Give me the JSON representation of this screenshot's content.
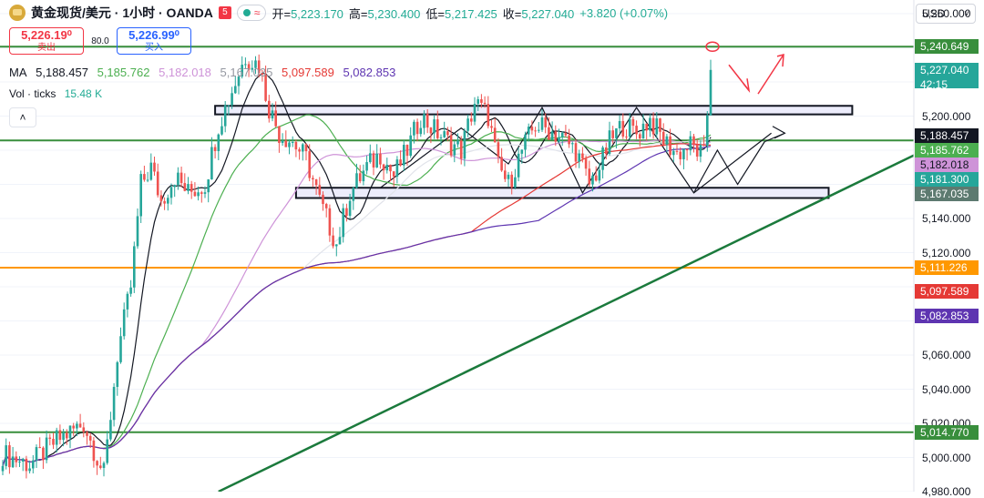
{
  "header": {
    "symbol_title": "黄金现货/美元 · 1小时 · OANDA",
    "flag": "5",
    "pill_wave": "≈",
    "open_label": "开=",
    "open": "5,223.170",
    "high_label": "高=",
    "high": "5,230.400",
    "low_label": "低=",
    "low": "5,217.425",
    "close_label": "收=",
    "close": "5,227.040",
    "change": "+3.820 (+0.07%)"
  },
  "trade": {
    "sell_price": "5,226.19⁰",
    "sell_label": "卖出",
    "spread": "80.0",
    "buy_price": "5,226.99⁰",
    "buy_label": "买入"
  },
  "ma": {
    "label": "MA",
    "values": [
      "5,188.457",
      "5,185.762",
      "5,182.018",
      "5,167.035",
      "5,097.589",
      "5,082.853"
    ],
    "colors": [
      "#131722",
      "#4caf50",
      "#ce93d8",
      "#9598a1",
      "#e53935",
      "#5e35b1"
    ]
  },
  "volume": {
    "label": "Vol · ticks",
    "value": "15.48 K"
  },
  "collapse_icon": "chevron-up-icon",
  "currency": {
    "label": "USD",
    "icon": "chevron-down-icon"
  },
  "price_axis": {
    "ticks": [
      "5,260.000",
      "5,200.000",
      "5,140.000",
      "5,120.000",
      "5,060.000",
      "5,040.000",
      "5,020.000",
      "5,000.000",
      "4,980.000"
    ],
    "tags": [
      {
        "label": "5,240.649",
        "color": "#388e3c",
        "price": 5240.649
      },
      {
        "label": "5,227.040",
        "sub": "42:15",
        "color": "#26a69a",
        "price": 5227.04
      },
      {
        "label": "5,188.457",
        "color": "#131722",
        "price": 5188.457
      },
      {
        "label": "5,185.762",
        "color": "#4caf50",
        "price": 5185.762
      },
      {
        "label": "5,182.018",
        "color": "#ce93d8",
        "price": 5182.018,
        "text_color": "#131722"
      },
      {
        "label": "5,181.300",
        "color": "#26a69a",
        "price": 5181.3
      },
      {
        "label": "5,167.035",
        "color": "#5d7a70",
        "price": 5167.035
      },
      {
        "label": "5,111.226",
        "color": "#ff9800",
        "price": 5111.226
      },
      {
        "label": "5,097.589",
        "color": "#e53935",
        "price": 5097.589
      },
      {
        "label": "5,082.853",
        "color": "#5e35b1",
        "price": 5082.853
      },
      {
        "label": "5,014.770",
        "color": "#388e3c",
        "price": 5014.77
      }
    ]
  },
  "chart_data": {
    "type": "candlestick",
    "title": "黄金现货/美元 · 1小时 · OANDA",
    "ylim": [
      4980,
      5268
    ],
    "up_color": "#26a69a",
    "down_color": "#ef5350",
    "horizontal_levels": [
      {
        "price": 5240.649,
        "color": "#388e3c"
      },
      {
        "price": 5185.762,
        "color": "#388e3c"
      },
      {
        "price": 5111.226,
        "color": "#ff9800"
      },
      {
        "price": 5014.77,
        "color": "#388e3c"
      }
    ],
    "zones": [
      {
        "top": 5206,
        "bottom": 5201,
        "start_index": 63,
        "end_index": 252
      },
      {
        "top": 5158,
        "bottom": 5152,
        "start_index": 87,
        "end_index": 245
      }
    ],
    "key_points": [
      [
        0,
        5002
      ],
      [
        8,
        4996
      ],
      [
        16,
        5010
      ],
      [
        24,
        5020
      ],
      [
        30,
        4990
      ],
      [
        34,
        5060
      ],
      [
        38,
        5100
      ],
      [
        41,
        5160
      ],
      [
        44,
        5170
      ],
      [
        47,
        5150
      ],
      [
        51,
        5165
      ],
      [
        55,
        5155
      ],
      [
        60,
        5160
      ],
      [
        64,
        5195
      ],
      [
        68,
        5215
      ],
      [
        72,
        5235
      ],
      [
        76,
        5230
      ],
      [
        79,
        5205
      ],
      [
        82,
        5190
      ],
      [
        86,
        5185
      ],
      [
        90,
        5175
      ],
      [
        94,
        5150
      ],
      [
        99,
        5125
      ],
      [
        103,
        5155
      ],
      [
        108,
        5170
      ],
      [
        112,
        5178
      ],
      [
        116,
        5165
      ],
      [
        120,
        5180
      ],
      [
        124,
        5200
      ],
      [
        128,
        5192
      ],
      [
        132,
        5185
      ],
      [
        136,
        5180
      ],
      [
        140,
        5208
      ],
      [
        144,
        5200
      ],
      [
        147,
        5170
      ],
      [
        150,
        5160
      ],
      [
        154,
        5180
      ],
      [
        158,
        5195
      ],
      [
        162,
        5192
      ],
      [
        166,
        5187
      ],
      [
        170,
        5180
      ],
      [
        174,
        5160
      ],
      [
        177,
        5170
      ],
      [
        180,
        5185
      ],
      [
        184,
        5195
      ],
      [
        188,
        5190
      ],
      [
        192,
        5198
      ],
      [
        196,
        5186
      ],
      [
        200,
        5178
      ],
      [
        204,
        5183
      ],
      [
        208,
        5176
      ],
      [
        210,
        5227
      ]
    ]
  }
}
